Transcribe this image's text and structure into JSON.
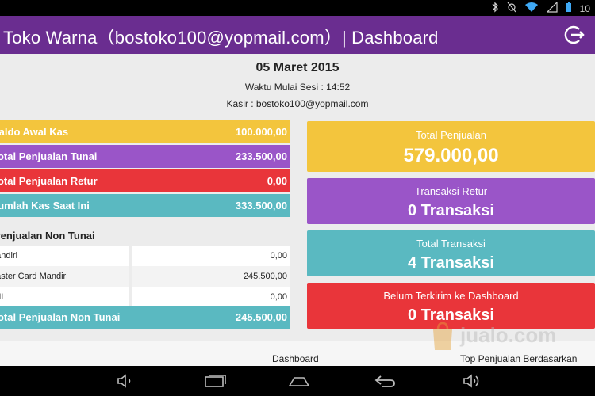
{
  "statusbar": {
    "clock": "10"
  },
  "appbar": {
    "title": "Toko Warna（bostoko100@yopmail.com）| Dashboard"
  },
  "session": {
    "date": "05 Maret 2015",
    "start": "Waktu Mulai Sesi : 14:52",
    "cashier": "Kasir : bostoko100@yopmail.com"
  },
  "cash": [
    {
      "label": "Saldo Awal Kas",
      "value": "100.000,00"
    },
    {
      "label": "Total Penjualan Tunai",
      "value": "233.500,00"
    },
    {
      "label": "Total Penjualan Retur",
      "value": "0,00"
    },
    {
      "label": "Jumlah Kas Saat Ini",
      "value": "333.500,00"
    }
  ],
  "non_tunai": {
    "title": "Penjualan Non Tunai",
    "rows": [
      {
        "label": "Mandiri",
        "value": "0,00"
      },
      {
        "label": "Master Card Mandiri",
        "value": "245.500,00"
      },
      {
        "label": "BNI",
        "value": "0,00"
      }
    ],
    "total": {
      "label": "Total Penjualan Non Tunai",
      "value": "245.500,00"
    }
  },
  "cards": [
    {
      "title": "Total Penjualan",
      "value": "579.000,00"
    },
    {
      "title": "Transaksi Retur",
      "value": "0 Transaksi"
    },
    {
      "title": "Total Transaksi",
      "value": "4 Transaksi"
    },
    {
      "title": "Belum Terkirim ke Dashboard",
      "value": "0 Transaksi"
    }
  ],
  "bottom_tabs": {
    "dashboard": "Dashboard",
    "top": "Top Penjualan Berdasarkan"
  },
  "watermark": {
    "text": "jualo.com"
  },
  "colors": {
    "appbar": "#6a2d90",
    "yellow": "#f3c53d",
    "purple": "#9a55c8",
    "red": "#e9353a",
    "teal": "#5ab9c1"
  }
}
